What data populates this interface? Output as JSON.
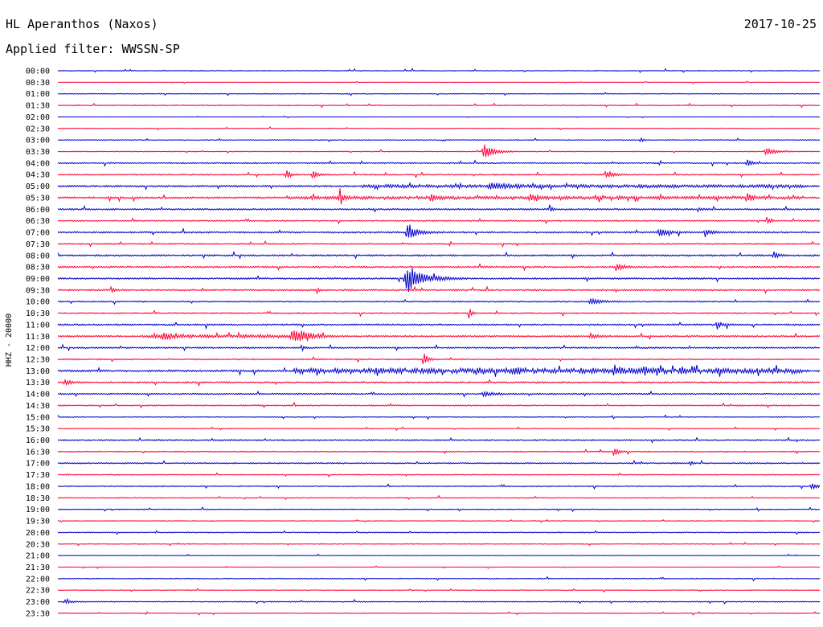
{
  "header": {
    "station": "HL Aperanthos (Naxos)",
    "date": "2017-10-25",
    "filter_label": "Applied filter: WWSSN-SP"
  },
  "colors": {
    "even_trace": "#0000cc",
    "odd_trace": "#ff0033",
    "background": "#ffffff",
    "text": "#000000"
  },
  "chart_data": {
    "type": "line",
    "title": "HL Aperanthos (Naxos)",
    "subtitle": "Applied filter: WWSSN-SP",
    "ylabel": "HHZ - 20000",
    "xlabel": "",
    "grid": false,
    "legend": "none",
    "row_labels": [
      "00:00",
      "00:30",
      "01:00",
      "01:30",
      "02:00",
      "02:30",
      "03:00",
      "03:30",
      "04:00",
      "04:30",
      "05:00",
      "05:30",
      "06:00",
      "06:30",
      "07:00",
      "07:30",
      "08:00",
      "08:30",
      "09:00",
      "09:30",
      "10:00",
      "10:30",
      "11:00",
      "11:30",
      "12:00",
      "12:30",
      "13:00",
      "13:30",
      "14:00",
      "14:30",
      "15:00",
      "15:30",
      "16:00",
      "16:30",
      "17:00",
      "17:30",
      "18:00",
      "18:30",
      "19:00",
      "19:30",
      "20:00",
      "20:30",
      "21:00",
      "21:30",
      "22:00",
      "22:30",
      "23:00",
      "23:30"
    ],
    "row_noise": [
      0.6,
      0.3,
      0.5,
      0.6,
      0.3,
      0.5,
      0.5,
      0.5,
      0.8,
      0.8,
      1.1,
      1.1,
      1.0,
      0.8,
      1.0,
      0.8,
      1.0,
      1.0,
      1.0,
      1.0,
      0.8,
      0.8,
      1.0,
      1.0,
      0.9,
      0.8,
      1.2,
      1.0,
      0.8,
      0.8,
      0.6,
      0.5,
      0.8,
      0.7,
      0.8,
      0.6,
      0.7,
      0.6,
      0.6,
      0.4,
      0.6,
      0.5,
      0.4,
      0.4,
      0.6,
      0.5,
      0.6,
      0.5
    ],
    "events": [
      {
        "row": 6,
        "t": 0.765,
        "amp": 3,
        "dur": 0.003
      },
      {
        "row": 7,
        "t": 0.56,
        "amp": 9,
        "dur": 0.012
      },
      {
        "row": 7,
        "t": 0.93,
        "amp": 4,
        "dur": 0.012
      },
      {
        "row": 8,
        "t": 0.905,
        "amp": 4,
        "dur": 0.006
      },
      {
        "row": 9,
        "t": 0.3,
        "amp": 8,
        "dur": 0.004
      },
      {
        "row": 9,
        "t": 0.335,
        "amp": 5,
        "dur": 0.006
      },
      {
        "row": 9,
        "t": 0.72,
        "amp": 5,
        "dur": 0.008
      },
      {
        "row": 10,
        "t": 0.57,
        "amp": 3,
        "dur": 0.02
      },
      {
        "row": 11,
        "t": 0.37,
        "amp": 8,
        "dur": 0.005
      },
      {
        "row": 11,
        "t": 0.49,
        "amp": 6,
        "dur": 0.005
      },
      {
        "row": 11,
        "t": 0.62,
        "amp": 4,
        "dur": 0.007
      },
      {
        "row": 11,
        "t": 0.905,
        "amp": 5,
        "dur": 0.006
      },
      {
        "row": 12,
        "t": 0.645,
        "amp": 6,
        "dur": 0.003
      },
      {
        "row": 12,
        "t": 0.84,
        "amp": 3,
        "dur": 0.004
      },
      {
        "row": 13,
        "t": 0.93,
        "amp": 5,
        "dur": 0.004
      },
      {
        "row": 14,
        "t": 0.46,
        "amp": 9,
        "dur": 0.012
      },
      {
        "row": 14,
        "t": 0.79,
        "amp": 5,
        "dur": 0.009
      },
      {
        "row": 14,
        "t": 0.85,
        "amp": 4,
        "dur": 0.009
      },
      {
        "row": 16,
        "t": 0.94,
        "amp": 4,
        "dur": 0.006
      },
      {
        "row": 17,
        "t": 0.735,
        "amp": 4,
        "dur": 0.009
      },
      {
        "row": 18,
        "t": 0.46,
        "amp": 16,
        "dur": 0.02
      },
      {
        "row": 19,
        "t": 0.07,
        "amp": 5,
        "dur": 0.003
      },
      {
        "row": 19,
        "t": 0.34,
        "amp": 4,
        "dur": 0.003
      },
      {
        "row": 20,
        "t": 0.7,
        "amp": 4,
        "dur": 0.012
      },
      {
        "row": 21,
        "t": 0.54,
        "amp": 8,
        "dur": 0.003
      },
      {
        "row": 22,
        "t": 0.865,
        "amp": 4,
        "dur": 0.006
      },
      {
        "row": 23,
        "t": 0.14,
        "amp": 4,
        "dur": 0.008
      },
      {
        "row": 23,
        "t": 0.31,
        "amp": 7,
        "dur": 0.018
      },
      {
        "row": 23,
        "t": 0.7,
        "amp": 3,
        "dur": 0.008
      },
      {
        "row": 24,
        "t": 0.32,
        "amp": 5,
        "dur": 0.003
      },
      {
        "row": 25,
        "t": 0.48,
        "amp": 8,
        "dur": 0.005
      },
      {
        "row": 26,
        "t": 0.55,
        "amp": 4,
        "dur": 0.005
      },
      {
        "row": 26,
        "t": 0.6,
        "amp": 4,
        "dur": 0.006
      },
      {
        "row": 26,
        "t": 0.73,
        "amp": 6,
        "dur": 0.006
      },
      {
        "row": 26,
        "t": 0.77,
        "amp": 6,
        "dur": 0.004
      },
      {
        "row": 26,
        "t": 0.82,
        "amp": 5,
        "dur": 0.003
      },
      {
        "row": 27,
        "t": 0.01,
        "amp": 3,
        "dur": 0.008
      },
      {
        "row": 28,
        "t": 0.56,
        "amp": 3,
        "dur": 0.012
      },
      {
        "row": 33,
        "t": 0.73,
        "amp": 6,
        "dur": 0.006
      },
      {
        "row": 34,
        "t": 0.83,
        "amp": 4,
        "dur": 0.003
      },
      {
        "row": 36,
        "t": 0.99,
        "amp": 3,
        "dur": 0.01
      },
      {
        "row": 46,
        "t": 0.01,
        "amp": 2,
        "dur": 0.008
      }
    ],
    "active_windows": [
      {
        "row": 26,
        "start": 0.31,
        "end": 0.98,
        "amp": 2.6
      },
      {
        "row": 23,
        "start": 0.11,
        "end": 0.35,
        "amp": 1.4
      },
      {
        "row": 11,
        "start": 0.3,
        "end": 0.98,
        "amp": 1.2
      },
      {
        "row": 10,
        "start": 0.4,
        "end": 0.98,
        "amp": 1.2
      }
    ]
  }
}
